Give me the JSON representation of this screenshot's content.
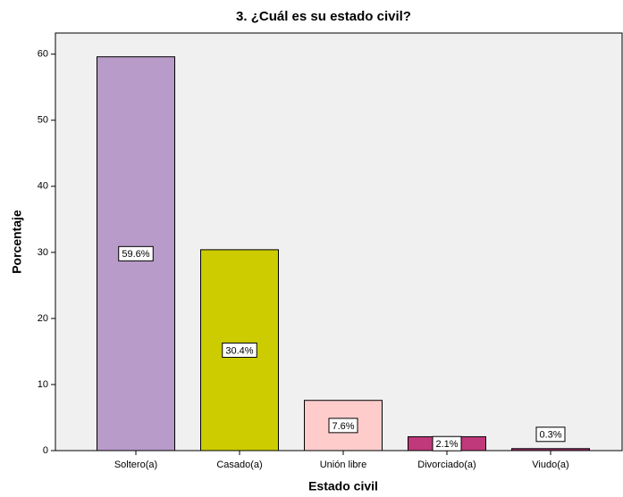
{
  "chart_data": {
    "type": "bar",
    "title": "3. ¿Cuál es su estado civil?",
    "x_label": "Estado civil",
    "y_label": "Porcentaje",
    "categories": [
      "Soltero(a)",
      "Casado(a)",
      "Unión libre",
      "Divorciado(a)",
      "Viudo(a)"
    ],
    "values": [
      59.6,
      30.4,
      7.6,
      2.1,
      0.3
    ],
    "value_labels": [
      "59.6%",
      "30.4%",
      "7.6%",
      "2.1%",
      "0.3%"
    ],
    "colors": [
      "#b89bc9",
      "#cccc00",
      "#ffcccc",
      "#c0397a",
      "#a0306e"
    ],
    "ylim": [
      0,
      63.2
    ],
    "yticks": [
      0,
      10,
      20,
      30,
      40,
      50,
      60
    ],
    "grid": false
  }
}
